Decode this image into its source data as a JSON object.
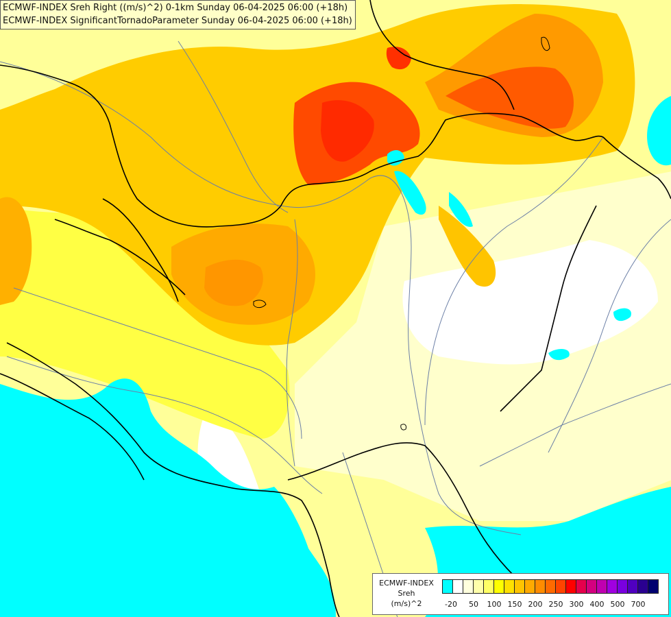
{
  "header": {
    "line1": "ECMWF-INDEX Sreh Right ((m/s)^2) 0-1km Sunday 06-04-2025 06:00 (+18h)",
    "line2": "ECMWF-INDEX SignificantTornadoParameter Sunday 06-04-2025 06:00 (+18h)"
  },
  "legend": {
    "line1": "ECMWF-INDEX",
    "line2": "Sreh",
    "line3": "(m/s)^2",
    "colors": [
      "#00ffff",
      "#ffffff",
      "#ffffdd",
      "#ffffaa",
      "#ffff66",
      "#ffff00",
      "#ffe000",
      "#ffc400",
      "#ffaa00",
      "#ff8c00",
      "#ff6a00",
      "#ff4400",
      "#ff0000",
      "#e6004c",
      "#d4007f",
      "#c000b0",
      "#a000e0",
      "#7a00e0",
      "#5000c0",
      "#2a0090",
      "#000070"
    ],
    "ticks": [
      "-20",
      "50",
      "100",
      "150",
      "200",
      "250",
      "300",
      "400",
      "500",
      "700"
    ]
  },
  "colors": {
    "water": "#00ffff",
    "border": "#000000",
    "river": "#6b7fa6",
    "background": "#ffff99"
  }
}
